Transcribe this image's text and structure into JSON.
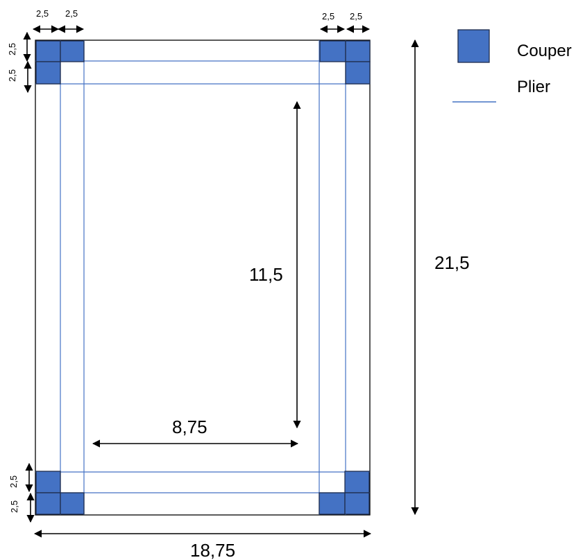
{
  "legend": {
    "cut_label": "Couper",
    "fold_label": "Plier"
  },
  "dimensions": {
    "top_left_1": "2,5",
    "top_left_2": "2,5",
    "top_right_1": "2,5",
    "top_right_2": "2,5",
    "left_top_1": "2,5",
    "left_top_2": "2,5",
    "left_bottom_1": "2,5",
    "left_bottom_2": "2,5",
    "inner_height": "11,5",
    "inner_width": "8,75",
    "total_height": "21,5",
    "total_width": "18,75"
  },
  "colors": {
    "cut": "#4472c4",
    "fold": "#4472c4"
  }
}
